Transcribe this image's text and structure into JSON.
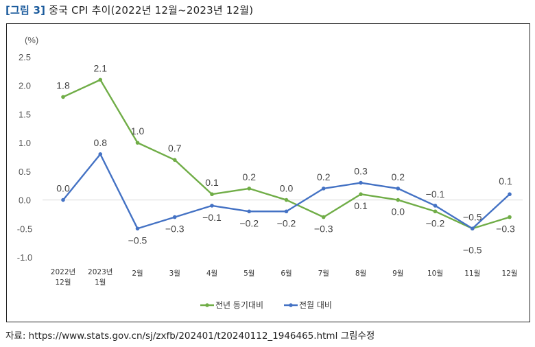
{
  "title": {
    "figure_label": "[그림 3]",
    "text": "중국 CPI 추이(2022년 12월~2023년 12월)"
  },
  "source": "자료: https://www.stats.gov.cn/sj/zxfb/202401/t20240112_1946465.html 그림수정",
  "chart_data": {
    "type": "line",
    "unit_label": "(%)",
    "categories": [
      [
        "2022년",
        "12월"
      ],
      [
        "2023년",
        "1월"
      ],
      [
        "2월"
      ],
      [
        "3월"
      ],
      [
        "4월"
      ],
      [
        "5월"
      ],
      [
        "6월"
      ],
      [
        "7월"
      ],
      [
        "8월"
      ],
      [
        "9월"
      ],
      [
        "10월"
      ],
      [
        "11월"
      ],
      [
        "12월"
      ]
    ],
    "ylim": [
      -1.0,
      2.5
    ],
    "yticks": [
      "2.5",
      "2.0",
      "1.5",
      "1.0",
      "0.5",
      "0.0",
      "-0.5",
      "-1.0"
    ],
    "series": [
      {
        "name": "전년 동기대비",
        "color": "#70ad47",
        "values": [
          1.8,
          2.1,
          1.0,
          0.7,
          0.1,
          0.2,
          0.0,
          -0.3,
          0.1,
          0.0,
          -0.2,
          -0.5,
          -0.3
        ],
        "labels": [
          "1.8",
          "2.1",
          "1.0",
          "0.7",
          "0.1",
          "0.2",
          "0.0",
          "−0.3",
          "0.1",
          "0.0",
          "−0.2",
          "−0.5",
          "−0.3"
        ]
      },
      {
        "name": "전월 대비",
        "color": "#4472c4",
        "values": [
          0.0,
          0.8,
          -0.5,
          -0.3,
          -0.1,
          -0.2,
          -0.2,
          0.2,
          0.3,
          0.2,
          -0.1,
          -0.5,
          0.1
        ],
        "labels": [
          "0.0",
          "0.8",
          "−0.5",
          "−0.3",
          "−0.1",
          "−0.2",
          "−0.2",
          "0.2",
          "0.3",
          "0.2",
          "−0.1",
          "−0.5",
          "0.1"
        ]
      }
    ],
    "gridlines": false,
    "zero_line": true,
    "legend": "bottom-center"
  }
}
